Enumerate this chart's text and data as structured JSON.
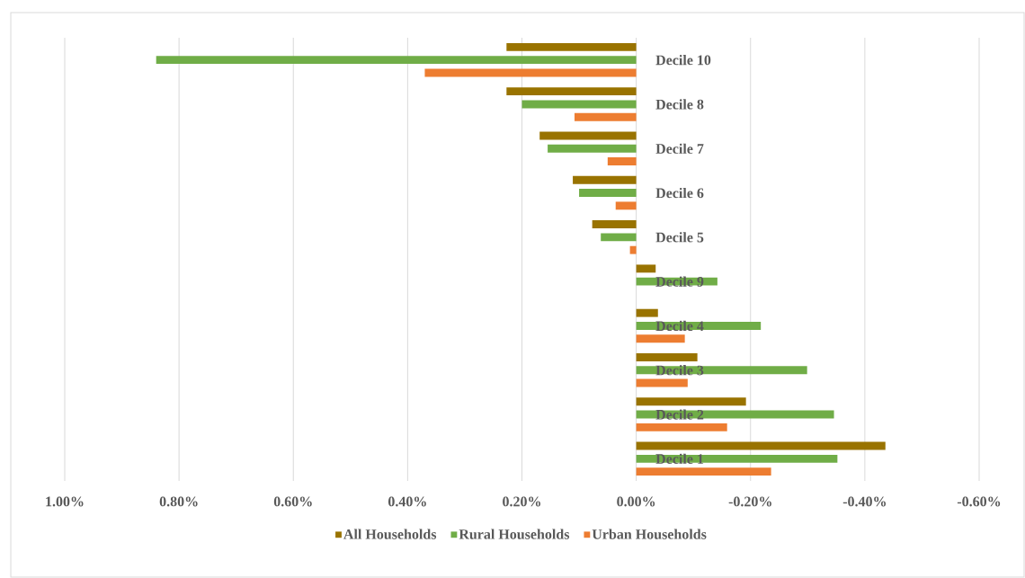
{
  "chart_data": {
    "type": "bar",
    "orientation": "horizontal",
    "categories": [
      "Decile 10",
      "Decile 8",
      "Decile 7",
      "Decile 6",
      "Decile 5",
      "Decile 9",
      "Decile 4",
      "Decile 3",
      "Decile 2",
      "Decile 1"
    ],
    "series": [
      {
        "name": "All Households",
        "color": "#997300",
        "values": [
          0.227,
          0.227,
          0.169,
          0.111,
          0.077,
          -0.034,
          -0.038,
          -0.107,
          -0.192,
          -0.436
        ]
      },
      {
        "name": "Rural Households",
        "color": "#70ad47",
        "values": [
          0.84,
          0.2,
          0.155,
          0.1,
          0.062,
          -0.142,
          -0.218,
          -0.299,
          -0.346,
          -0.352
        ]
      },
      {
        "name": "Urban Households",
        "color": "#ed7d31",
        "values": [
          0.37,
          0.108,
          0.05,
          0.036,
          0.011,
          0.0,
          -0.085,
          -0.09,
          -0.159,
          -0.236
        ]
      }
    ],
    "xlim": [
      1.0,
      -0.6
    ],
    "xticks": [
      {
        "value": 1.0,
        "label": "1.00%"
      },
      {
        "value": 0.8,
        "label": "0.80%"
      },
      {
        "value": 0.6,
        "label": "0.60%"
      },
      {
        "value": 0.4,
        "label": "0.40%"
      },
      {
        "value": 0.2,
        "label": "0.20%"
      },
      {
        "value": 0.0,
        "label": "0.00%"
      },
      {
        "value": -0.2,
        "label": "-0.20%"
      },
      {
        "value": -0.4,
        "label": "-0.40%"
      },
      {
        "value": -0.6,
        "label": "-0.60%"
      }
    ],
    "grid": "x",
    "legend": "bottom"
  }
}
